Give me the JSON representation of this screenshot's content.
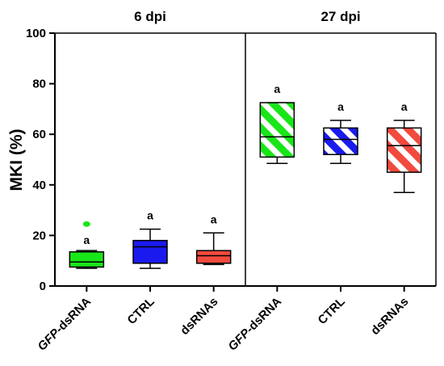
{
  "chart_data": {
    "type": "box",
    "ylabel": "MKI (%)",
    "ylim": [
      0,
      100
    ],
    "yticks": [
      0,
      20,
      40,
      60,
      80,
      100
    ],
    "colors": {
      "GFP-dsRNA": "#19e619",
      "CTRL": "#1a1aee",
      "dsRNAs": "#f24a3e"
    },
    "panels": [
      {
        "title": "6 dpi",
        "pattern": "solid",
        "groups": [
          {
            "category": "GFP-dsRNA",
            "min": 7,
            "q1": 7.5,
            "median": 9.5,
            "q3": 13.5,
            "max": 14,
            "outliers": [
              24.5
            ],
            "letter": "a"
          },
          {
            "category": "CTRL",
            "min": 7,
            "q1": 9,
            "median": 15.5,
            "q3": 18,
            "max": 22.5,
            "outliers": [],
            "letter": "a"
          },
          {
            "category": "dsRNAs",
            "min": 8.5,
            "q1": 9,
            "median": 12,
            "q3": 14,
            "max": 21,
            "outliers": [],
            "letter": "a"
          }
        ]
      },
      {
        "title": "27 dpi",
        "pattern": "striped",
        "groups": [
          {
            "category": "GFP-dsRNA",
            "min": 48.5,
            "q1": 51,
            "median": 59,
            "q3": 72.5,
            "max": 72.5,
            "outliers": [],
            "letter": "a"
          },
          {
            "category": "CTRL",
            "min": 48.5,
            "q1": 52,
            "median": 58,
            "q3": 62.5,
            "max": 65.5,
            "outliers": [],
            "letter": "a"
          },
          {
            "category": "dsRNAs",
            "min": 37,
            "q1": 45,
            "median": 55.5,
            "q3": 62.5,
            "max": 65.5,
            "outliers": [],
            "letter": "a"
          }
        ]
      }
    ]
  }
}
